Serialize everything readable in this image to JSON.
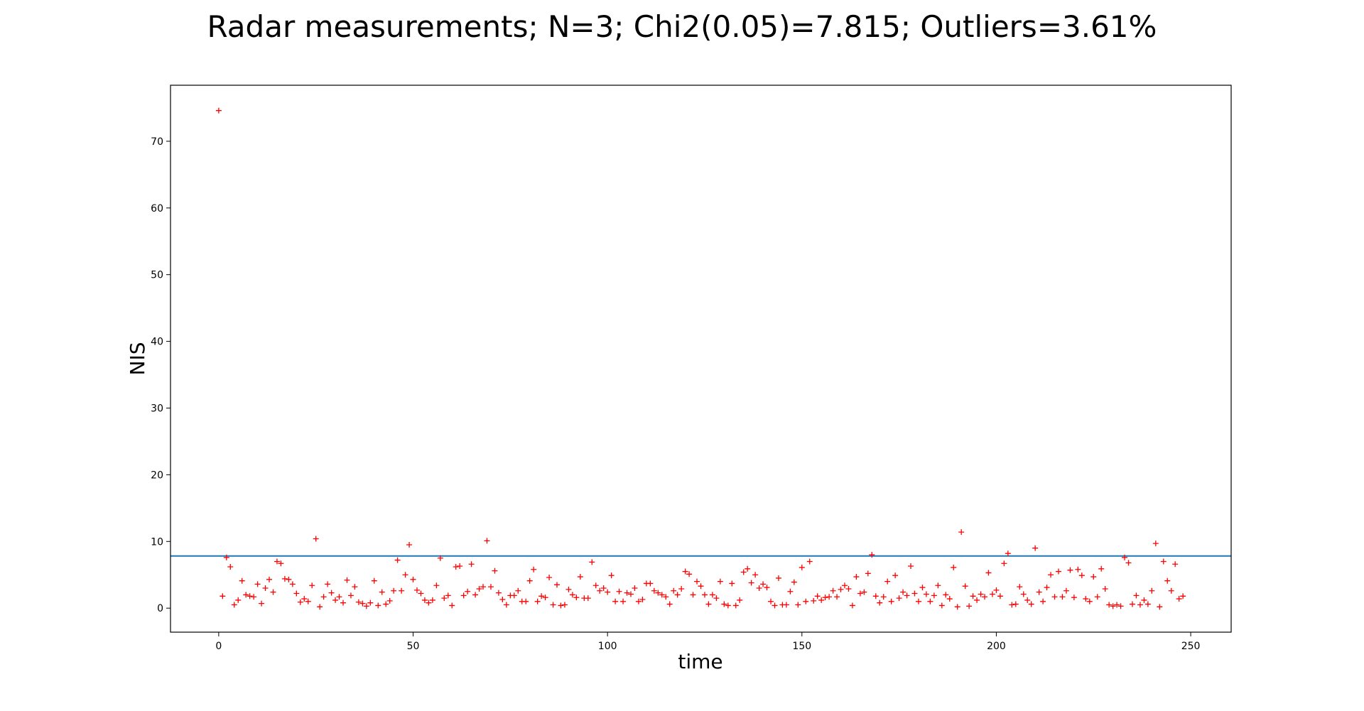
{
  "chart_data": {
    "type": "scatter",
    "title": "Radar measurements; N=3; Chi2(0.05)=7.815; Outliers=3.61%",
    "xlabel": "time",
    "ylabel": "NIS",
    "xlim": [
      -12.4,
      260.4
    ],
    "ylim": [
      -3.6,
      78.4
    ],
    "xticks": [
      0,
      50,
      100,
      150,
      200,
      250
    ],
    "yticks": [
      0,
      10,
      20,
      30,
      40,
      50,
      60,
      70
    ],
    "grid": false,
    "legend": "none",
    "threshold": 7.815,
    "colors": {
      "points": "#ff0000",
      "threshold_line": "#1f77b4"
    },
    "series": [
      {
        "marker": "+",
        "x": [
          0,
          1,
          2,
          3,
          4,
          5,
          6,
          7,
          8,
          9,
          10,
          11,
          12,
          13,
          14,
          15,
          16,
          17,
          18,
          19,
          20,
          21,
          22,
          23,
          24,
          25,
          26,
          27,
          28,
          29,
          30,
          31,
          32,
          33,
          34,
          35,
          36,
          37,
          38,
          39,
          40,
          41,
          42,
          43,
          44,
          45,
          46,
          47,
          48,
          49,
          50,
          51,
          52,
          53,
          54,
          55,
          56,
          57,
          58,
          59,
          60,
          61,
          62,
          63,
          64,
          65,
          66,
          67,
          68,
          69,
          70,
          71,
          72,
          73,
          74,
          75,
          76,
          77,
          78,
          79,
          80,
          81,
          82,
          83,
          84,
          85,
          86,
          87,
          88,
          89,
          90,
          91,
          92,
          93,
          94,
          95,
          96,
          97,
          98,
          99,
          100,
          101,
          102,
          103,
          104,
          105,
          106,
          107,
          108,
          109,
          110,
          111,
          112,
          113,
          114,
          115,
          116,
          117,
          118,
          119,
          120,
          121,
          122,
          123,
          124,
          125,
          126,
          127,
          128,
          129,
          130,
          131,
          132,
          133,
          134,
          135,
          136,
          137,
          138,
          139,
          140,
          141,
          142,
          143,
          144,
          145,
          146,
          147,
          148,
          149,
          150,
          151,
          152,
          153,
          154,
          155,
          156,
          157,
          158,
          159,
          160,
          161,
          162,
          163,
          164,
          165,
          166,
          167,
          168,
          169,
          170,
          171,
          172,
          173,
          174,
          175,
          176,
          177,
          178,
          179,
          180,
          181,
          182,
          183,
          184,
          185,
          186,
          187,
          188,
          189,
          190,
          191,
          192,
          193,
          194,
          195,
          196,
          197,
          198,
          199,
          200,
          201,
          202,
          203,
          204,
          205,
          206,
          207,
          208,
          209,
          210,
          211,
          212,
          213,
          214,
          215,
          216,
          217,
          218,
          219,
          220,
          221,
          222,
          223,
          224,
          225,
          226,
          227,
          228,
          229,
          230,
          231,
          232,
          233,
          234,
          235,
          236,
          237,
          238,
          239,
          240,
          241,
          242,
          243,
          244,
          245,
          246,
          247,
          248
        ],
        "y": [
          74.6,
          1.8,
          7.6,
          6.2,
          0.5,
          1.2,
          4.1,
          2.0,
          1.8,
          1.7,
          3.6,
          0.7,
          3.0,
          4.3,
          2.4,
          7.0,
          6.7,
          4.4,
          4.3,
          3.6,
          2.2,
          0.9,
          1.4,
          1.0,
          3.4,
          10.4,
          0.2,
          1.7,
          3.6,
          2.3,
          1.2,
          1.7,
          0.8,
          4.2,
          1.9,
          3.2,
          0.9,
          0.7,
          0.3,
          0.8,
          4.1,
          0.4,
          2.4,
          0.6,
          1.1,
          2.6,
          7.2,
          2.6,
          5.0,
          9.5,
          4.3,
          2.7,
          2.2,
          1.2,
          0.8,
          1.2,
          3.4,
          7.5,
          1.5,
          1.9,
          0.4,
          6.2,
          6.3,
          1.9,
          2.5,
          6.6,
          2.0,
          2.9,
          3.2,
          10.1,
          3.2,
          5.6,
          2.3,
          1.3,
          0.5,
          1.9,
          1.9,
          2.6,
          1.0,
          1.0,
          4.1,
          5.8,
          1.0,
          1.8,
          1.6,
          4.6,
          0.5,
          3.5,
          0.4,
          0.5,
          2.8,
          2.0,
          1.6,
          4.7,
          1.5,
          1.5,
          6.9,
          3.4,
          2.6,
          3.0,
          2.4,
          4.9,
          1.0,
          2.5,
          1.0,
          2.3,
          2.1,
          3.0,
          1.0,
          1.3,
          3.7,
          3.7,
          2.6,
          2.3,
          2.0,
          1.7,
          0.6,
          2.6,
          2.0,
          2.9,
          5.5,
          5.1,
          2.0,
          4.0,
          3.3,
          2.0,
          0.6,
          2.0,
          1.5,
          4.0,
          0.6,
          0.4,
          3.7,
          0.4,
          1.2,
          5.4,
          5.9,
          3.8,
          5.0,
          3.0,
          3.6,
          3.1,
          1.0,
          0.4,
          4.5,
          0.5,
          0.5,
          2.5,
          3.9,
          0.5,
          6.1,
          1.0,
          7.0,
          1.1,
          1.8,
          1.2,
          1.6,
          1.7,
          2.6,
          1.7,
          2.8,
          3.4,
          2.9,
          0.4,
          4.7,
          2.2,
          2.4,
          5.2,
          8.0,
          1.8,
          0.8,
          1.7,
          4.0,
          1.0,
          4.9,
          1.5,
          2.4,
          1.9,
          6.3,
          2.2,
          1.0,
          3.1,
          2.1,
          1.0,
          1.9,
          3.4,
          0.4,
          2.0,
          1.4,
          6.1,
          0.2,
          11.4,
          3.3,
          0.3,
          1.8,
          1.2,
          2.1,
          1.7,
          5.3,
          2.1,
          2.7,
          1.8,
          6.7,
          8.2,
          0.5,
          0.6,
          3.2,
          2.1,
          1.2,
          0.6,
          9.0,
          2.4,
          1.0,
          3.1,
          5.0,
          1.7,
          5.5,
          1.7,
          2.6,
          5.7,
          1.6,
          5.8,
          4.9,
          1.4,
          1.0,
          4.7,
          1.7,
          5.9,
          2.9,
          0.5,
          0.3,
          0.5,
          0.3,
          7.6,
          6.8,
          0.6,
          1.9,
          0.5,
          1.2,
          0.6,
          2.6,
          9.7,
          0.2,
          7.0,
          4.1,
          2.6,
          6.6,
          1.4,
          1.8
        ]
      }
    ]
  }
}
